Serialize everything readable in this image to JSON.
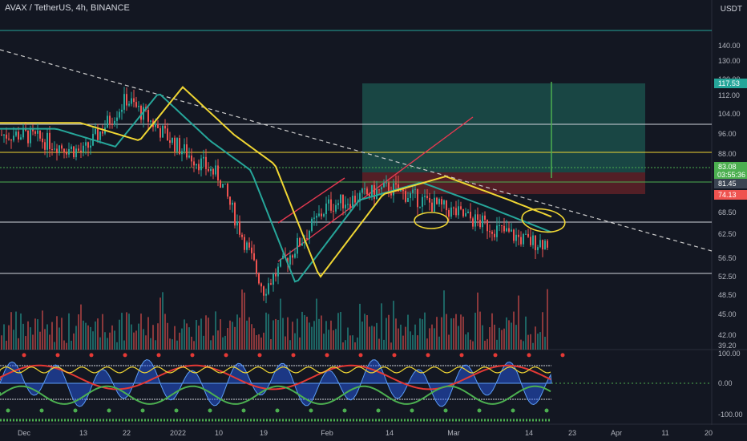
{
  "header": {
    "title": "AVAX / TetherUS, 4h, BINANCE",
    "currency": "USDT"
  },
  "price_axis": {
    "ticks": [
      "140.00",
      "130.00",
      "120.00",
      "112.00",
      "104.00",
      "96.00",
      "88.00",
      "81.45",
      "74.13",
      "68.50",
      "62.50",
      "56.50",
      "52.50",
      "48.50",
      "45.00",
      "42.00",
      "39.20"
    ]
  },
  "price_tags": [
    {
      "label": "117.53",
      "color": "#26a69a"
    },
    {
      "label": "83.08",
      "sub": "03:55:36",
      "color": "#4caf50"
    },
    {
      "label": "81.45",
      "color": "#3a4452"
    },
    {
      "label": "74.13",
      "color": "#ef5350"
    }
  ],
  "osc_axis": {
    "ticks": [
      "100.00",
      "0.00",
      "-100.00"
    ]
  },
  "time_axis": {
    "labels": [
      "Dec",
      "13",
      "22",
      "2022",
      "10",
      "19",
      "Feb",
      "14",
      "Mar",
      "14",
      "23",
      "Apr",
      "11",
      "20"
    ]
  },
  "colors": {
    "background": "#131722",
    "candle_up": "#26a69a",
    "candle_down": "#ef5350",
    "ma_yellow": "#f0d633",
    "ma_teal": "#26a69a",
    "trendline": "#cccccc",
    "channel": "#e53950",
    "annotation": "#f0d633",
    "tp_zone": "#1b4f4a",
    "sl_zone": "#5b2027"
  },
  "chart_data": [
    {
      "type": "line",
      "title": "AVAX / TetherUS, 4h, BINANCE",
      "xlabel": "",
      "ylabel": "",
      "x": [
        "Dec",
        "13",
        "22",
        "2022",
        "10",
        "19",
        "Feb",
        "14",
        "Mar",
        "14"
      ],
      "series": [
        {
          "values": [
            110,
            104,
            122,
            106,
            96,
            58,
            86,
            92,
            84,
            74
          ]
        }
      ],
      "levels": [
        145,
        100,
        88,
        81.45,
        66,
        53
      ],
      "ylim": [
        39.2,
        145
      ],
      "last_price": 83.08,
      "grid": false
    },
    {
      "type": "line",
      "x": [
        "Dec",
        "13",
        "22",
        "2022",
        "10",
        "19",
        "Feb",
        "14",
        "Mar",
        "14"
      ],
      "ylim": [
        -100,
        100
      ],
      "levels": [
        100,
        0,
        -100
      ]
    }
  ]
}
